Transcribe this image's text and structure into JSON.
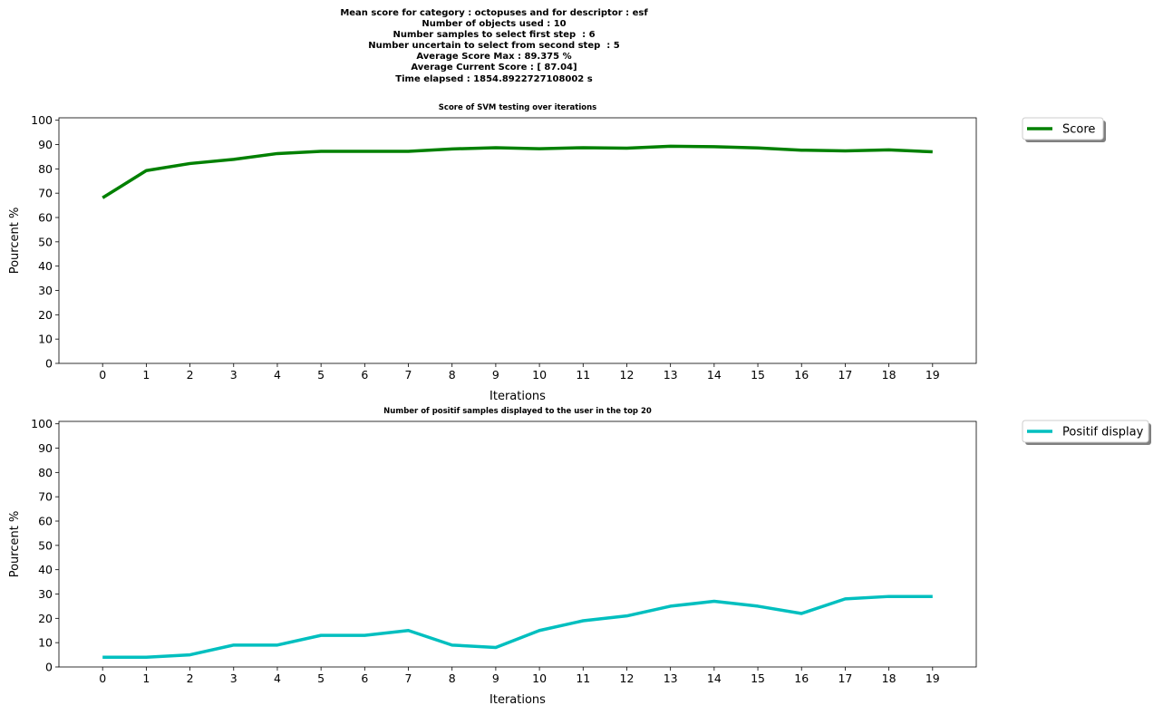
{
  "suptitle": {
    "lines": [
      "Mean score for category : octopuses and for descriptor : esf",
      "Number of objects used : 10",
      "Number samples to select first step  : 6",
      "Number uncertain to select from second step  : 5",
      "Average Score Max : 89.375 %",
      "Average Current Score : [ 87.04]",
      "Time elapsed : 1854.8922727108002 s"
    ]
  },
  "chart_data": [
    {
      "type": "line",
      "title": "Score of SVM testing over iterations",
      "xlabel": "Iterations",
      "ylabel": "Pourcent %",
      "xlim": [
        -1,
        20
      ],
      "ylim": [
        0,
        101
      ],
      "xticks": [
        0,
        1,
        2,
        3,
        4,
        5,
        6,
        7,
        8,
        9,
        10,
        11,
        12,
        13,
        14,
        15,
        16,
        17,
        18,
        19
      ],
      "yticks": [
        0,
        10,
        20,
        30,
        40,
        50,
        60,
        70,
        80,
        90,
        100
      ],
      "legend_position": "outside-top-right",
      "series": [
        {
          "name": "Score",
          "color": "#008000",
          "x": [
            0,
            1,
            2,
            3,
            4,
            5,
            6,
            7,
            8,
            9,
            10,
            11,
            12,
            13,
            14,
            15,
            16,
            17,
            18,
            19
          ],
          "values": [
            68.1,
            79.3,
            82.2,
            83.9,
            86.3,
            87.2,
            87.2,
            87.2,
            88.2,
            88.7,
            88.3,
            88.7,
            88.5,
            89.3,
            89.1,
            88.6,
            87.7,
            87.4,
            87.8,
            87.0
          ]
        }
      ]
    },
    {
      "type": "line",
      "title": "Number of positif samples displayed to the user in the top 20",
      "xlabel": "Iterations",
      "ylabel": "Pourcent %",
      "xlim": [
        -1,
        20
      ],
      "ylim": [
        0,
        101
      ],
      "xticks": [
        0,
        1,
        2,
        3,
        4,
        5,
        6,
        7,
        8,
        9,
        10,
        11,
        12,
        13,
        14,
        15,
        16,
        17,
        18,
        19
      ],
      "yticks": [
        0,
        10,
        20,
        30,
        40,
        50,
        60,
        70,
        80,
        90,
        100
      ],
      "legend_position": "outside-top-right",
      "series": [
        {
          "name": "Positif display",
          "color": "#00bfbf",
          "x": [
            0,
            1,
            2,
            3,
            4,
            5,
            6,
            7,
            8,
            9,
            10,
            11,
            12,
            13,
            14,
            15,
            16,
            17,
            18,
            19
          ],
          "values": [
            4,
            4,
            5,
            9,
            9,
            13,
            13,
            15,
            9,
            8,
            15,
            19,
            21,
            25,
            27,
            25,
            22,
            28,
            29,
            29
          ]
        }
      ]
    }
  ]
}
